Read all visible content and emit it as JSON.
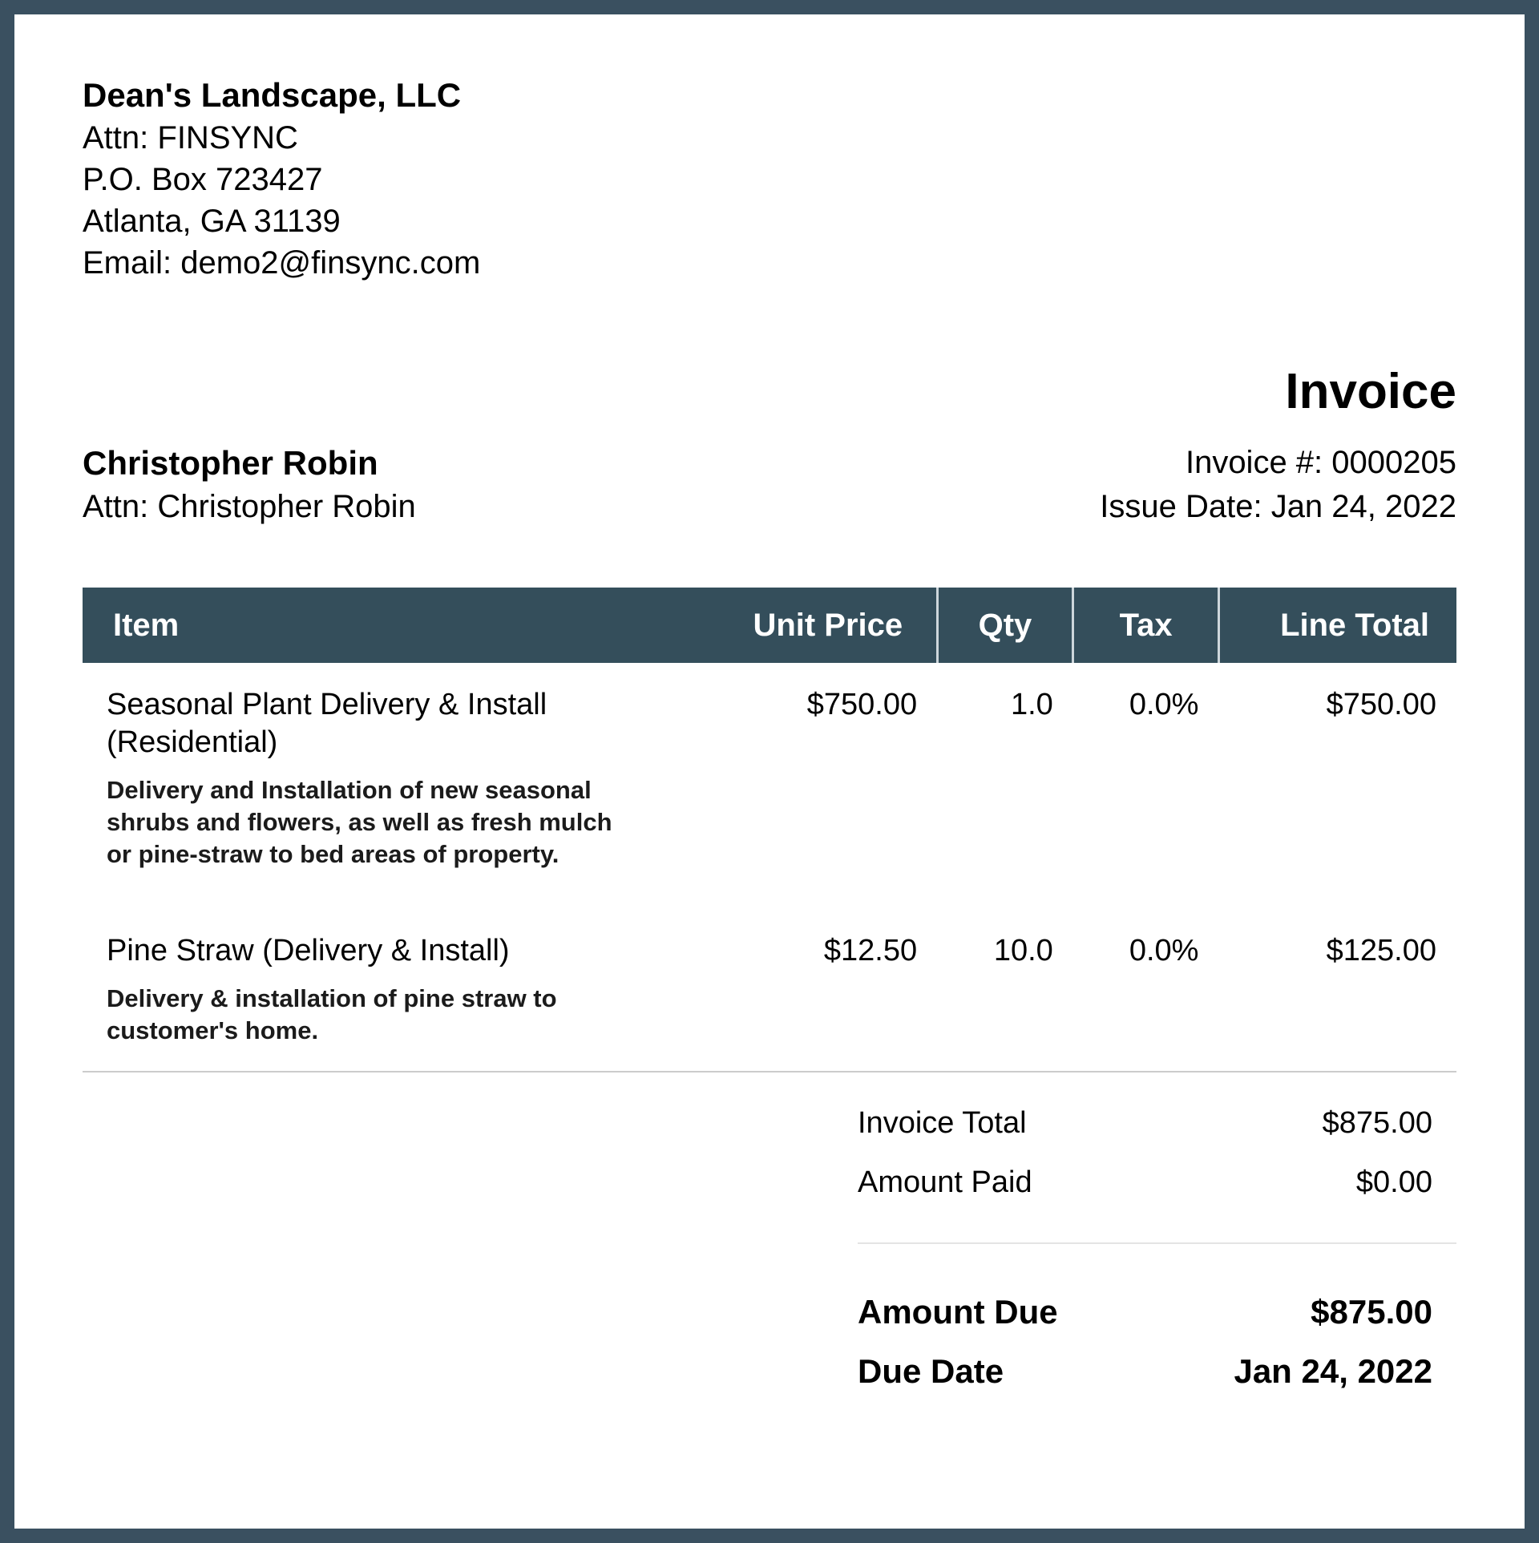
{
  "colors": {
    "frame": "#3A5060",
    "table_header_bg": "#344E5B",
    "table_header_text": "#FFFFFF",
    "items_divider": "#CCCCCC",
    "totals_divider": "#E4E4E4",
    "header_separator": "#CDD6DB"
  },
  "company": {
    "name": "Dean's Landscape, LLC",
    "attn": "Attn: FINSYNC",
    "address_line1": "P.O. Box 723427",
    "address_line2": "Atlanta, GA 31139",
    "email": "Email: demo2@finsync.com"
  },
  "invoice": {
    "title": "Invoice",
    "number_line": "Invoice #: 0000205",
    "issue_date_line": "Issue Date: Jan 24, 2022"
  },
  "customer": {
    "name": "Christopher Robin",
    "attn": "Attn: Christopher Robin"
  },
  "items_table": {
    "columns": [
      "Item",
      "Unit Price",
      "Qty",
      "Tax",
      "Line Total"
    ],
    "rows": [
      {
        "item": "Seasonal Plant Delivery & Install (Residential)",
        "description": "Delivery and Installation of new seasonal shrubs and flowers, as well as fresh mulch or pine-straw to bed areas of property.",
        "unit_price": "$750.00",
        "qty": "1.0",
        "tax": "0.0%",
        "line_total": "$750.00"
      },
      {
        "item": "Pine Straw (Delivery & Install)",
        "description": "Delivery & installation of pine straw to customer's home.",
        "unit_price": "$12.50",
        "qty": "10.0",
        "tax": "0.0%",
        "line_total": "$125.00"
      }
    ]
  },
  "totals": {
    "invoice_total_label": "Invoice Total",
    "invoice_total_value": "$875.00",
    "amount_paid_label": "Amount Paid",
    "amount_paid_value": "$0.00",
    "amount_due_label": "Amount Due",
    "amount_due_value": "$875.00",
    "due_date_label": "Due Date",
    "due_date_value": "Jan 24, 2022"
  }
}
